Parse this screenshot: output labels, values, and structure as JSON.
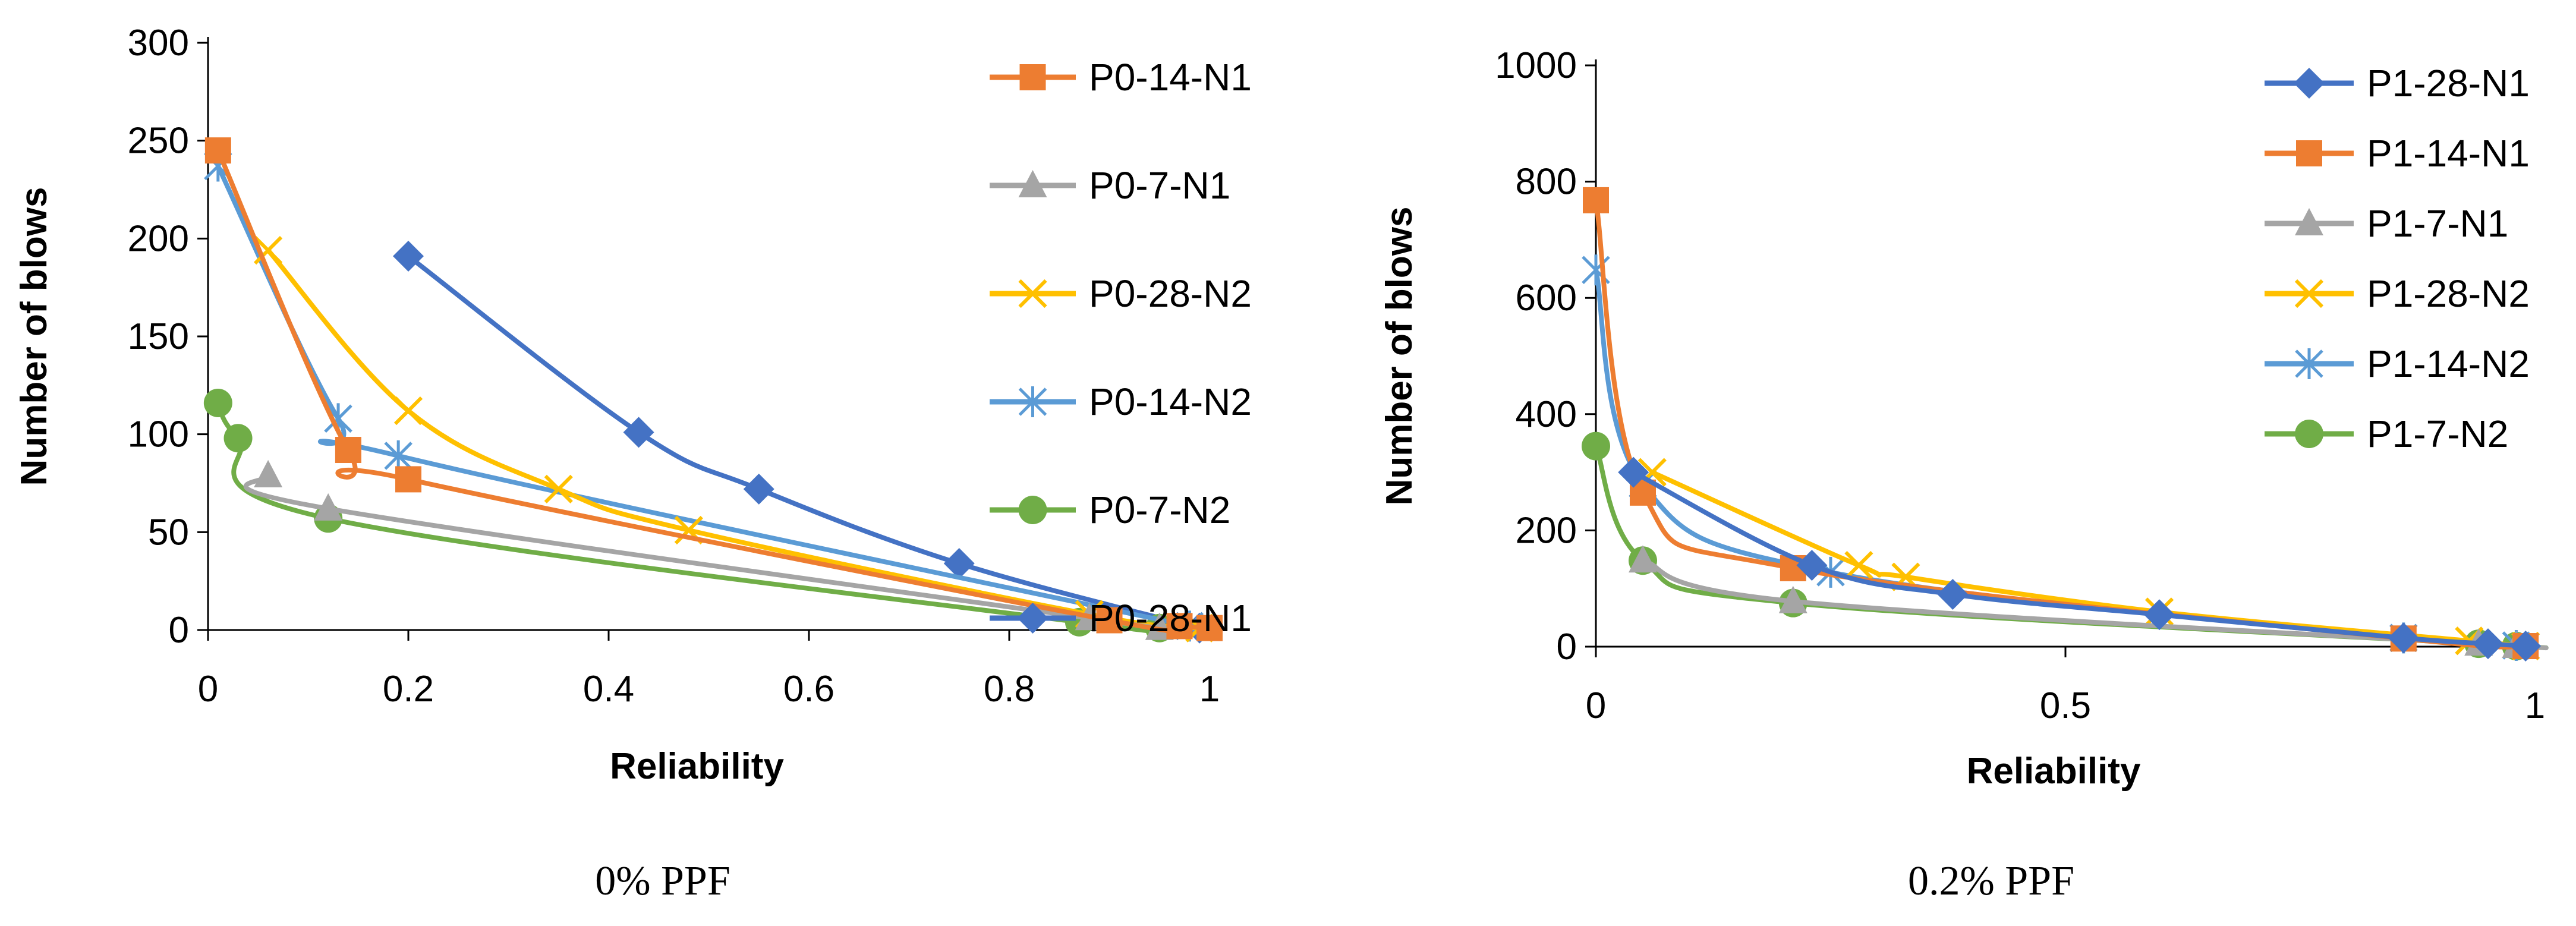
{
  "colors": {
    "blue": "#4472C4",
    "orange": "#ED7D31",
    "gray": "#A5A5A5",
    "gold": "#FFC000",
    "lightblue": "#5B9BD5",
    "green": "#70AD47",
    "axis": "#000000"
  },
  "chart_data": [
    {
      "type": "scatter",
      "caption": "0% PPF",
      "xlabel": "Reliability",
      "ylabel": "Number of blows",
      "xlim": [
        0,
        1
      ],
      "ylim": [
        0,
        300
      ],
      "xticks": [
        "0",
        "0.2",
        "0.4",
        "0.6",
        "0.8",
        "1"
      ],
      "xtick_values": [
        0,
        0.2,
        0.4,
        0.6,
        0.8,
        1
      ],
      "yticks": [
        "0",
        "50",
        "100",
        "150",
        "200",
        "250",
        "300"
      ],
      "ytick_values": [
        0,
        50,
        100,
        150,
        200,
        250,
        300
      ],
      "grid": false,
      "legend_position": "right",
      "series": [
        {
          "name": "P0-14-N1",
          "color": "orange",
          "marker": "square",
          "x": [
            0.01,
            0.14,
            0.2,
            0.9,
            0.97,
            1.0
          ],
          "y": [
            245,
            92,
            77,
            5,
            2,
            1
          ]
        },
        {
          "name": "P0-7-N1",
          "color": "gray",
          "marker": "triangle",
          "x": [
            0.06,
            0.12,
            0.88,
            0.95
          ],
          "y": [
            79,
            62,
            6,
            1
          ]
        },
        {
          "name": "P0-28-N2",
          "color": "gold",
          "marker": "x",
          "x": [
            0.06,
            0.2,
            0.35,
            0.48,
            0.88,
            0.99
          ],
          "y": [
            194,
            112,
            72,
            51,
            8,
            1
          ]
        },
        {
          "name": "P0-14-N2",
          "color": "lightblue",
          "marker": "star",
          "x": [
            0.01,
            0.13,
            0.19,
            0.98
          ],
          "y": [
            237,
            108,
            89,
            2
          ]
        },
        {
          "name": "P0-7-N2",
          "color": "green",
          "marker": "circle",
          "x": [
            0.01,
            0.03,
            0.12,
            0.87,
            0.95
          ],
          "y": [
            116,
            98,
            57,
            4,
            1
          ]
        },
        {
          "name": "P0-28-N1",
          "color": "blue",
          "marker": "diamond",
          "x": [
            0.2,
            0.43,
            0.55,
            0.75,
            0.99
          ],
          "y": [
            191,
            101,
            72,
            34,
            1
          ]
        }
      ]
    },
    {
      "type": "scatter",
      "caption": "0.2% PPF",
      "xlabel": "Reliability",
      "ylabel": "Number of blows",
      "xlim": [
        0,
        1
      ],
      "ylim": [
        0,
        1000
      ],
      "xticks": [
        "0",
        "0.5",
        "1"
      ],
      "xtick_values": [
        0,
        0.5,
        1
      ],
      "yticks": [
        "0",
        "200",
        "400",
        "600",
        "800",
        "1000"
      ],
      "ytick_values": [
        0,
        200,
        400,
        600,
        800,
        1000
      ],
      "grid": false,
      "legend_position": "right",
      "series": [
        {
          "name": "P1-28-N1",
          "color": "blue",
          "marker": "diamond",
          "x": [
            0.04,
            0.23,
            0.38,
            0.6,
            0.86,
            0.95,
            0.99
          ],
          "y": [
            300,
            140,
            90,
            55,
            15,
            5,
            1
          ]
        },
        {
          "name": "P1-14-N1",
          "color": "orange",
          "marker": "square",
          "x": [
            0.0,
            0.05,
            0.21,
            0.86,
            0.99
          ],
          "y": [
            768,
            265,
            135,
            14,
            1
          ]
        },
        {
          "name": "P1-7-N1",
          "color": "gray",
          "marker": "triangle",
          "x": [
            0.05,
            0.21,
            0.94,
            0.98
          ],
          "y": [
            148,
            78,
            5,
            1
          ]
        },
        {
          "name": "P1-28-N2",
          "color": "gold",
          "marker": "x",
          "x": [
            0.06,
            0.28,
            0.33,
            0.6,
            0.93,
            0.99
          ],
          "y": [
            300,
            140,
            120,
            60,
            10,
            1
          ]
        },
        {
          "name": "P1-14-N2",
          "color": "lightblue",
          "marker": "star",
          "x": [
            0.0,
            0.05,
            0.25,
            0.86,
            0.98
          ],
          "y": [
            648,
            280,
            128,
            15,
            2
          ]
        },
        {
          "name": "P1-7-N2",
          "color": "green",
          "marker": "circle",
          "x": [
            0.0,
            0.05,
            0.21,
            0.94,
            0.98
          ],
          "y": [
            345,
            148,
            75,
            5,
            1
          ]
        }
      ]
    }
  ]
}
